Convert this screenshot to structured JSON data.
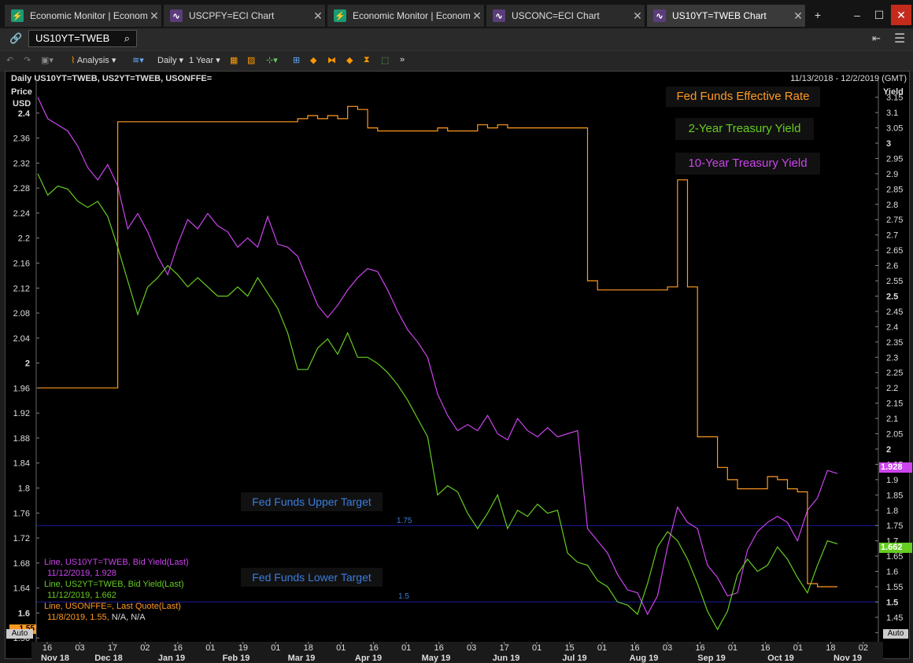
{
  "tabs": [
    {
      "label": "Economic Monitor | Economic Monitor",
      "icon": "lightning-icon",
      "active": false
    },
    {
      "label": "USCPFY=ECI Chart",
      "icon": "chart-icon",
      "active": false
    },
    {
      "label": "Economic Monitor | Economic Monitor",
      "icon": "lightning-icon",
      "active": false
    },
    {
      "label": "USCONC=ECI Chart",
      "icon": "chart-icon",
      "active": false
    },
    {
      "label": "US10YT=TWEB Chart",
      "icon": "chart-icon",
      "active": true
    }
  ],
  "search": {
    "value": "US10YT=TWEB"
  },
  "toolbar": {
    "analysis": "Analysis",
    "interval": "Daily",
    "range": "1 Year"
  },
  "chart_header": {
    "left": "Daily US10YT=TWEB, US2YT=TWEB, USONFFE=",
    "right": "11/13/2018 - 12/2/2019 (GMT)"
  },
  "axis_left": {
    "title1": "Price",
    "title2": "USD",
    "ticks": [
      "2.4",
      "2.36",
      "2.32",
      "2.28",
      "2.24",
      "2.2",
      "2.16",
      "2.12",
      "2.08",
      "2.04",
      "2",
      "1.96",
      "1.92",
      "1.88",
      "1.84",
      "1.8",
      "1.76",
      "1.72",
      "1.68",
      "1.64",
      "1.6",
      "1.56"
    ],
    "auto": "Auto"
  },
  "axis_right": {
    "title": "Yield",
    "ticks": [
      "3.15",
      "3.1",
      "3.05",
      "3",
      "2.95",
      "2.9",
      "2.85",
      "2.8",
      "2.75",
      "2.7",
      "2.65",
      "2.6",
      "2.55",
      "2.5",
      "2.45",
      "2.4",
      "2.35",
      "2.3",
      "2.25",
      "2.2",
      "2.15",
      "2.1",
      "2.05",
      "2",
      "1.95",
      "1.9",
      "1.85",
      "1.8",
      "1.75",
      "1.7",
      "1.65",
      "1.6",
      "1.55",
      "1.5",
      "1.45",
      "1.4"
    ],
    "auto": "Auto"
  },
  "x_ticks": {
    "days": [
      "16",
      "03",
      "17",
      "02",
      "16",
      "01",
      "19",
      "01",
      "18",
      "01",
      "16",
      "01",
      "16",
      "03",
      "17",
      "01",
      "15",
      "01",
      "16",
      "03",
      "16",
      "01",
      "16",
      "01",
      "18",
      "02"
    ],
    "months": [
      "Nov 18",
      "Dec 18",
      "Jan 19",
      "Feb 19",
      "Mar 19",
      "Apr 19",
      "May 19",
      "Jun 19",
      "Jul 19",
      "Aug 19",
      "Sep 19",
      "Oct 19",
      "Nov 19"
    ]
  },
  "annotations": {
    "fed_effective": "Fed Funds Effective Rate",
    "two_year": "2-Year Treasury Yield",
    "ten_year": "10-Year Treasury Yield",
    "upper_target": "Fed Funds Upper Target",
    "lower_target": "Fed Funds Lower Target",
    "upper_value": "1.75",
    "lower_value": "1.5"
  },
  "legend": [
    {
      "line1": "Line, US10YT=TWEB, Bid Yield(Last)",
      "line2": "11/12/2019, 1.928"
    },
    {
      "line1": "Line, US2YT=TWEB, Bid Yield(Last)",
      "line2": "11/12/2019, 1.662"
    },
    {
      "line1": "Line, USONFFE=, Last Quote(Last)",
      "line2": "11/8/2019, 1.55,",
      "line3": "N/A, N/A"
    }
  ],
  "badges": {
    "ten": "1.928",
    "two": "1.662",
    "effective": "1.55"
  },
  "colors": {
    "ten": "#cc44ee",
    "two": "#66cc22",
    "eff": "#ff9922",
    "target": "#1a1aa0",
    "label_blue": "#3b7ddd"
  },
  "chart_data": {
    "type": "line",
    "y_right_range": [
      1.37,
      3.18
    ],
    "y_left_range": [
      1.554,
      2.44
    ],
    "series": [
      {
        "name": "US10YT=TWEB",
        "axis": "right",
        "values": [
          3.15,
          3.08,
          3.06,
          3.04,
          2.99,
          2.92,
          2.88,
          2.93,
          2.86,
          2.72,
          2.77,
          2.71,
          2.63,
          2.57,
          2.67,
          2.75,
          2.72,
          2.77,
          2.73,
          2.71,
          2.66,
          2.69,
          2.66,
          2.76,
          2.67,
          2.66,
          2.63,
          2.55,
          2.47,
          2.43,
          2.47,
          2.52,
          2.56,
          2.59,
          2.58,
          2.52,
          2.45,
          2.39,
          2.35,
          2.3,
          2.18,
          2.11,
          2.06,
          2.08,
          2.06,
          2.11,
          2.05,
          2.03,
          2.1,
          2.06,
          2.04,
          2.07,
          2.04,
          2.05,
          2.06,
          1.74,
          1.7,
          1.66,
          1.59,
          1.54,
          1.53,
          1.46,
          1.52,
          1.68,
          1.81,
          1.76,
          1.74,
          1.62,
          1.58,
          1.52,
          1.53,
          1.67,
          1.73,
          1.76,
          1.78,
          1.76,
          1.7,
          1.8,
          1.84,
          1.93,
          1.92
        ]
      },
      {
        "name": "US2YT=TWEB",
        "axis": "right",
        "values": [
          2.9,
          2.83,
          2.86,
          2.85,
          2.81,
          2.79,
          2.81,
          2.76,
          2.66,
          2.55,
          2.44,
          2.53,
          2.56,
          2.6,
          2.57,
          2.53,
          2.56,
          2.53,
          2.5,
          2.5,
          2.53,
          2.5,
          2.56,
          2.51,
          2.46,
          2.38,
          2.26,
          2.26,
          2.33,
          2.36,
          2.31,
          2.38,
          2.3,
          2.3,
          2.28,
          2.25,
          2.21,
          2.16,
          2.1,
          2.04,
          1.85,
          1.88,
          1.86,
          1.79,
          1.74,
          1.79,
          1.85,
          1.74,
          1.8,
          1.78,
          1.82,
          1.79,
          1.8,
          1.66,
          1.63,
          1.62,
          1.57,
          1.55,
          1.5,
          1.49,
          1.46,
          1.56,
          1.68,
          1.73,
          1.7,
          1.64,
          1.56,
          1.47,
          1.41,
          1.47,
          1.59,
          1.64,
          1.6,
          1.62,
          1.68,
          1.64,
          1.58,
          1.53,
          1.62,
          1.7,
          1.69
        ]
      },
      {
        "name": "USONFFE=",
        "axis": "right",
        "values": [
          2.2,
          2.2,
          2.2,
          2.2,
          2.2,
          2.2,
          2.2,
          2.2,
          3.07,
          3.07,
          3.07,
          3.07,
          3.07,
          3.07,
          3.07,
          3.07,
          3.07,
          3.07,
          3.07,
          3.07,
          3.07,
          3.07,
          3.07,
          3.07,
          3.07,
          3.07,
          3.08,
          3.09,
          3.08,
          3.09,
          3.08,
          3.12,
          3.11,
          3.05,
          3.04,
          3.04,
          3.04,
          3.04,
          3.04,
          3.04,
          3.05,
          3.04,
          3.04,
          3.04,
          3.06,
          3.05,
          3.06,
          3.05,
          3.05,
          3.05,
          3.05,
          3.05,
          3.05,
          3.05,
          3.05,
          2.55,
          2.52,
          2.52,
          2.52,
          2.52,
          2.52,
          2.52,
          2.52,
          2.53,
          2.88,
          2.53,
          2.04,
          2.04,
          1.94,
          1.9,
          1.87,
          1.87,
          1.87,
          1.91,
          1.9,
          1.87,
          1.86,
          1.56,
          1.55,
          1.55,
          1.55
        ]
      }
    ],
    "targets": [
      {
        "name": "Fed Funds Upper Target",
        "value": 1.75
      },
      {
        "name": "Fed Funds Lower Target",
        "value": 1.5
      }
    ]
  }
}
